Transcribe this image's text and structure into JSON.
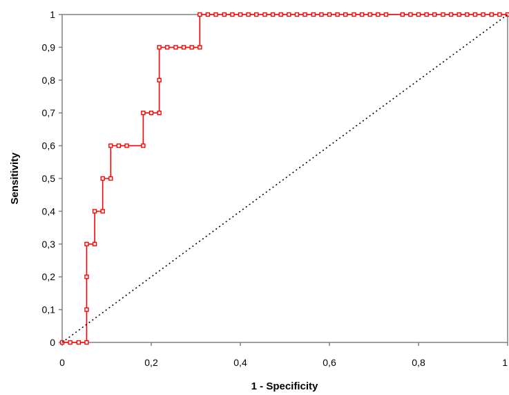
{
  "chart_data": {
    "type": "line",
    "xlabel": "1 - Specificity",
    "ylabel": "Sensitivity",
    "xlim": [
      0,
      1
    ],
    "ylim": [
      0,
      1
    ],
    "x_ticks": [
      "0",
      "0,2",
      "0,4",
      "0,6",
      "0,8",
      "1"
    ],
    "y_ticks": [
      "0",
      "0,1",
      "0,2",
      "0,3",
      "0,4",
      "0,5",
      "0,6",
      "0,7",
      "0,8",
      "0,9",
      "1"
    ],
    "grid": false,
    "legend": "none",
    "series": [
      {
        "role": "roc-curve",
        "color": "#ff0000",
        "line_style": "solid",
        "marker": "square",
        "points": [
          [
            0,
            0
          ],
          [
            0.018,
            0
          ],
          [
            0.037,
            0
          ],
          [
            0.055,
            0
          ],
          [
            0.055,
            0.1
          ],
          [
            0.055,
            0.2
          ],
          [
            0.055,
            0.3
          ],
          [
            0.073,
            0.3
          ],
          [
            0.073,
            0.4
          ],
          [
            0.091,
            0.4
          ],
          [
            0.091,
            0.5
          ],
          [
            0.109,
            0.5
          ],
          [
            0.109,
            0.6
          ],
          [
            0.127,
            0.6
          ],
          [
            0.145,
            0.6
          ],
          [
            0.182,
            0.6
          ],
          [
            0.182,
            0.7
          ],
          [
            0.2,
            0.7
          ],
          [
            0.218,
            0.7
          ],
          [
            0.218,
            0.8
          ],
          [
            0.218,
            0.9
          ],
          [
            0.236,
            0.9
          ],
          [
            0.255,
            0.9
          ],
          [
            0.273,
            0.9
          ],
          [
            0.291,
            0.9
          ],
          [
            0.309,
            0.9
          ],
          [
            0.309,
            1
          ],
          [
            0.327,
            1
          ],
          [
            0.345,
            1
          ],
          [
            0.364,
            1
          ],
          [
            0.382,
            1
          ],
          [
            0.4,
            1
          ],
          [
            0.418,
            1
          ],
          [
            0.436,
            1
          ],
          [
            0.455,
            1
          ],
          [
            0.473,
            1
          ],
          [
            0.491,
            1
          ],
          [
            0.509,
            1
          ],
          [
            0.527,
            1
          ],
          [
            0.545,
            1
          ],
          [
            0.564,
            1
          ],
          [
            0.582,
            1
          ],
          [
            0.6,
            1
          ],
          [
            0.618,
            1
          ],
          [
            0.636,
            1
          ],
          [
            0.655,
            1
          ],
          [
            0.673,
            1
          ],
          [
            0.691,
            1
          ],
          [
            0.709,
            1
          ],
          [
            0.727,
            1
          ],
          [
            0.764,
            1
          ],
          [
            0.782,
            1
          ],
          [
            0.8,
            1
          ],
          [
            0.818,
            1
          ],
          [
            0.836,
            1
          ],
          [
            0.855,
            1
          ],
          [
            0.873,
            1
          ],
          [
            0.891,
            1
          ],
          [
            0.909,
            1
          ],
          [
            0.927,
            1
          ],
          [
            0.945,
            1
          ],
          [
            0.964,
            1
          ],
          [
            0.982,
            1
          ],
          [
            1,
            1
          ]
        ]
      },
      {
        "role": "reference-line",
        "color": "#000000",
        "line_style": "dotted",
        "marker": "none",
        "points": [
          [
            0,
            0
          ],
          [
            1,
            1
          ]
        ]
      }
    ]
  }
}
